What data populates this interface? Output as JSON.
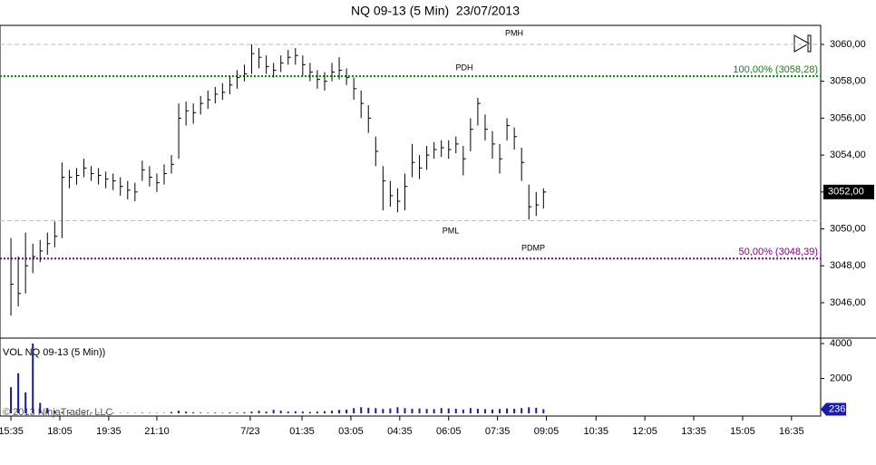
{
  "chart_data": {
    "type": "ohlc",
    "title": "NQ 09-13 (5 Min)  23/07/2013",
    "color": "#000000",
    "high": [
      3049.5,
      3048.5,
      3049.8,
      3049.2,
      3049.4,
      3049.8,
      3050.4,
      3053.6,
      3053.2,
      3053.3,
      3053.8,
      3053.4,
      3053.3,
      3053.1,
      3053.0,
      3052.8,
      3052.6,
      3052.5,
      3053.7,
      3053.4,
      3053.0,
      3053.5,
      3054.0,
      3056.8,
      3056.9,
      3056.8,
      3057.2,
      3057.5,
      3057.7,
      3057.9,
      3058.3,
      3058.6,
      3058.9,
      3060.0,
      3059.8,
      3059.4,
      3059.0,
      3059.4,
      3059.7,
      3059.8,
      3059.4,
      3059.0,
      3058.6,
      3058.5,
      3059.0,
      3059.3,
      3058.7,
      3058.2,
      3057.5,
      3056.7,
      3055.0,
      3053.4,
      3052.6,
      3052.2,
      3053.0,
      3054.6,
      3054.0,
      3054.5,
      3054.7,
      3054.8,
      3054.8,
      3055.0,
      3054.5,
      3056.0,
      3057.1,
      3056.2,
      3055.3,
      3054.6,
      3056.0,
      3055.5,
      3054.4,
      3052.4,
      3052.0,
      3052.2
    ],
    "low": [
      3045.3,
      3045.8,
      3046.5,
      3047.6,
      3048.2,
      3048.6,
      3049.0,
      3049.5,
      3052.2,
      3052.4,
      3052.8,
      3052.6,
      3052.4,
      3052.2,
      3052.1,
      3051.8,
      3051.6,
      3051.5,
      3052.6,
      3052.3,
      3052.0,
      3052.4,
      3053.0,
      3053.8,
      3055.6,
      3055.7,
      3056.2,
      3056.5,
      3056.8,
      3057.0,
      3057.3,
      3057.6,
      3058.0,
      3058.4,
      3058.7,
      3058.4,
      3058.2,
      3058.5,
      3058.9,
      3058.9,
      3058.3,
      3058.0,
      3057.6,
      3057.5,
      3058.0,
      3058.1,
      3057.8,
      3057.0,
      3056.0,
      3055.2,
      3053.4,
      3051.0,
      3051.2,
      3050.9,
      3051.0,
      3052.8,
      3052.7,
      3053.2,
      3053.8,
      3053.9,
      3053.8,
      3054.1,
      3052.9,
      3054.2,
      3055.6,
      3054.8,
      3053.8,
      3053.0,
      3054.8,
      3054.3,
      3052.6,
      3050.5,
      3050.7,
      3051.1
    ],
    "close": [
      3047.0,
      3046.5,
      3048.0,
      3048.5,
      3048.8,
      3049.2,
      3049.6,
      3052.8,
      3052.8,
      3052.9,
      3053.3,
      3053.0,
      3052.9,
      3052.7,
      3052.6,
      3052.3,
      3052.1,
      3052.0,
      3053.2,
      3052.8,
      3052.5,
      3053.0,
      3053.5,
      3056.0,
      3056.4,
      3056.3,
      3056.8,
      3057.0,
      3057.3,
      3057.4,
      3057.8,
      3058.2,
      3058.4,
      3059.5,
      3059.3,
      3058.8,
      3058.6,
      3059.0,
      3059.3,
      3059.4,
      3058.9,
      3058.5,
      3058.1,
      3058.0,
      3058.5,
      3058.6,
      3058.2,
      3057.6,
      3056.8,
      3056.0,
      3054.2,
      3052.6,
      3051.8,
      3051.5,
      3052.3,
      3053.6,
      3053.3,
      3054.0,
      3054.3,
      3054.4,
      3054.3,
      3054.6,
      3053.8,
      3055.4,
      3056.8,
      3055.4,
      3054.6,
      3053.8,
      3055.6,
      3055.0,
      3053.6,
      3051.2,
      3051.3,
      3052.0
    ],
    "volume": [
      1500,
      2300,
      1200,
      4000,
      600,
      300,
      150,
      80,
      60,
      50,
      40,
      40,
      30,
      30,
      30,
      20,
      20,
      20,
      30,
      20,
      20,
      20,
      80,
      150,
      100,
      60,
      40,
      30,
      40,
      30,
      50,
      40,
      60,
      100,
      150,
      100,
      200,
      150,
      100,
      120,
      100,
      80,
      100,
      120,
      150,
      200,
      220,
      300,
      350,
      320,
      300,
      250,
      280,
      350,
      300,
      260,
      280,
      250,
      240,
      300,
      280,
      260,
      220,
      300,
      260,
      240,
      220,
      250,
      280,
      260,
      300,
      350,
      320,
      236
    ],
    "volume_color": "#1a1aa8",
    "xlim": [
      -1.5,
      111
    ],
    "xticks": [
      {
        "value": 0,
        "label": "15:35"
      },
      {
        "value": 6.7,
        "label": "18:05"
      },
      {
        "value": 13.4,
        "label": "19:35"
      },
      {
        "value": 20,
        "label": "21:10"
      },
      {
        "value": 32.8,
        "label": "7/23"
      },
      {
        "value": 39.9,
        "label": "01:35"
      },
      {
        "value": 46.6,
        "label": "03:05"
      },
      {
        "value": 53.3,
        "label": "04:35"
      },
      {
        "value": 60,
        "label": "06:05"
      },
      {
        "value": 66.7,
        "label": "07:35"
      },
      {
        "value": 73.4,
        "label": "09:05"
      },
      {
        "value": 80.2,
        "label": "10:35"
      },
      {
        "value": 86.9,
        "label": "12:05"
      },
      {
        "value": 93.6,
        "label": "13:35"
      },
      {
        "value": 100.3,
        "label": "15:05"
      },
      {
        "value": 107,
        "label": "16:35"
      }
    ],
    "ylim": [
      3044.13,
      3061.03
    ],
    "yticks": [
      {
        "value": 3046,
        "label": "3046,00"
      },
      {
        "value": 3048,
        "label": "3048,00"
      },
      {
        "value": 3050,
        "label": "3050,00"
      },
      {
        "value": 3052,
        "label": "3052,00"
      },
      {
        "value": 3054,
        "label": "3054,00"
      },
      {
        "value": 3056,
        "label": "3056,00"
      },
      {
        "value": 3058,
        "label": "3058,00"
      },
      {
        "value": 3060,
        "label": "3060,00"
      }
    ],
    "y2lim": [
      0,
      4100
    ],
    "y2ticks": [
      2000,
      4000
    ],
    "levels": [
      {
        "name": "PMH",
        "value": 3060.0,
        "color": "#bbbbbb"
      },
      {
        "name": "PDH",
        "value": 3058.28,
        "color": "#0a8a0a",
        "label": "100,00% (3058,28)"
      },
      {
        "name": "PML",
        "value": 3050.45,
        "color": "#bbbbbb"
      },
      {
        "name": "PDMP",
        "value": 3048.39,
        "color": "#800080",
        "label": "50,00% (3048,39)"
      }
    ],
    "last_price": {
      "value": 3052,
      "label": "3052,00"
    },
    "last_volume": 236,
    "volume_title": "VOL NQ 09-13 (5 Min))",
    "copyright": "© 2013 NinjaTrader, LLC"
  }
}
